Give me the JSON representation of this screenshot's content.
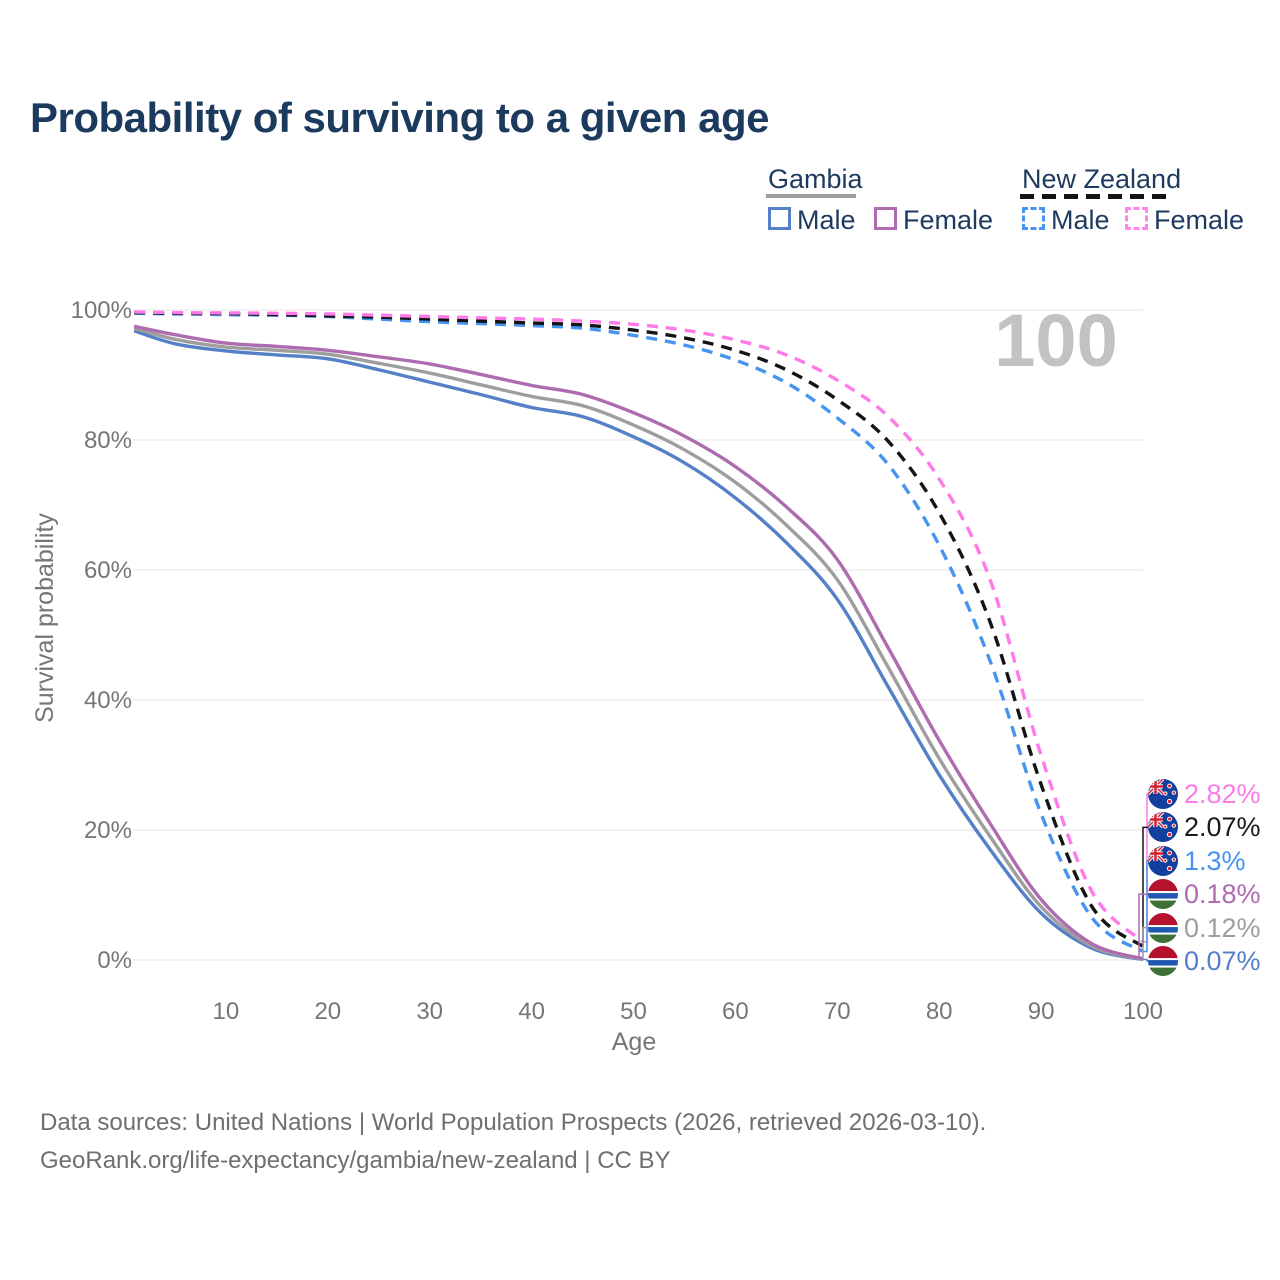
{
  "title": "Probability of surviving to a given age",
  "watermark": "100",
  "legend": {
    "groups": [
      {
        "label": "Gambia",
        "line_style": "solid",
        "line_color": "#9e9e9e",
        "items": [
          {
            "label": "Male",
            "color": "#5580c8"
          },
          {
            "label": "Female",
            "color": "#ad6caf"
          }
        ]
      },
      {
        "label": "New Zealand",
        "line_style": "dashed",
        "line_color": "#141414",
        "items": [
          {
            "label": "Male",
            "color": "#4694f0"
          },
          {
            "label": "Female",
            "color": "#ff85e8"
          }
        ]
      }
    ]
  },
  "axes": {
    "x_title": "Age",
    "y_title": "Survival probability"
  },
  "chart_data": {
    "type": "line",
    "title": "Probability of surviving to a given age",
    "xlabel": "Age",
    "ylabel": "Survival probability",
    "xlim": [
      1,
      100
    ],
    "ylim": [
      0,
      100
    ],
    "grid": true,
    "legend_position": "top-right",
    "x_ticks": [
      "10",
      "20",
      "30",
      "40",
      "50",
      "60",
      "70",
      "80",
      "90",
      "100"
    ],
    "y_ticks": [
      "100%",
      "80%",
      "60%",
      "40%",
      "20%",
      "0%"
    ],
    "x": [
      1,
      5,
      10,
      15,
      20,
      25,
      30,
      35,
      40,
      45,
      50,
      55,
      60,
      65,
      70,
      75,
      80,
      85,
      90,
      95,
      100
    ],
    "series": [
      {
        "name": "Gambia — Male",
        "color": "#5580c8",
        "dashed": false,
        "values": [
          96.8,
          94.8,
          93.7,
          93.1,
          92.5,
          90.8,
          88.9,
          87.0,
          85.0,
          83.6,
          80.5,
          76.5,
          71.1,
          64.2,
          55.5,
          42.0,
          28.5,
          17.0,
          7.2,
          1.8,
          0.07
        ]
      },
      {
        "name": "Gambia — Both sexes",
        "color": "#9e9e9e",
        "dashed": false,
        "values": [
          97.2,
          95.5,
          94.3,
          93.8,
          93.2,
          91.8,
          90.3,
          88.5,
          86.7,
          85.3,
          82.3,
          78.5,
          73.5,
          66.9,
          58.5,
          45.0,
          31.0,
          19.0,
          8.2,
          2.1,
          0.12
        ]
      },
      {
        "name": "Gambia — Female",
        "color": "#ad6caf",
        "dashed": false,
        "values": [
          97.5,
          96.2,
          94.9,
          94.4,
          93.8,
          92.8,
          91.7,
          90.1,
          88.4,
          87.0,
          84.2,
          80.6,
          75.9,
          69.7,
          61.6,
          48.0,
          33.8,
          21.0,
          9.3,
          2.5,
          0.18
        ]
      },
      {
        "name": "New Zealand — Male",
        "color": "#4694f0",
        "dashed": true,
        "values": [
          99.5,
          99.4,
          99.3,
          99.2,
          99.0,
          98.6,
          98.2,
          97.9,
          97.6,
          97.2,
          96.1,
          94.6,
          92.3,
          88.8,
          83.4,
          76.2,
          63.8,
          46.0,
          22.5,
          6.5,
          1.3
        ]
      },
      {
        "name": "New Zealand — Both sexes",
        "color": "#141414",
        "dashed": true,
        "values": [
          99.6,
          99.5,
          99.45,
          99.3,
          99.1,
          98.9,
          98.6,
          98.3,
          98.0,
          97.7,
          96.9,
          95.7,
          93.8,
          90.8,
          86.2,
          79.8,
          68.8,
          52.0,
          27.0,
          8.2,
          2.07
        ]
      },
      {
        "name": "New Zealand — Female",
        "color": "#ff7ae8",
        "dashed": true,
        "values": [
          99.7,
          99.6,
          99.55,
          99.5,
          99.4,
          99.2,
          99.0,
          98.8,
          98.6,
          98.3,
          97.8,
          96.9,
          95.4,
          93.1,
          89.2,
          83.6,
          74.0,
          58.5,
          31.5,
          10.5,
          2.82
        ]
      }
    ],
    "end_labels": [
      {
        "text": "2.82%",
        "color": "#fb7ce8",
        "flag": "nz",
        "series": "New Zealand — Female"
      },
      {
        "text": "2.07%",
        "color": "#1a1a1a",
        "flag": "nz",
        "series": "New Zealand — Both sexes"
      },
      {
        "text": "1.3%",
        "color": "#4694f0",
        "flag": "nz",
        "series": "New Zealand — Male"
      },
      {
        "text": "0.18%",
        "color": "#b06ab2",
        "flag": "gm",
        "series": "Gambia — Female"
      },
      {
        "text": "0.12%",
        "color": "#9e9e9e",
        "flag": "gm",
        "series": "Gambia — Both sexes"
      },
      {
        "text": "0.07%",
        "color": "#5580c8",
        "flag": "gm",
        "series": "Gambia — Male"
      }
    ]
  },
  "footer": {
    "line1": "Data sources: United Nations | World Population Prospects (2026, retrieved 2026-03-10).",
    "line2": "GeoRank.org/life-expectancy/gambia/new-zealand | CC BY"
  }
}
